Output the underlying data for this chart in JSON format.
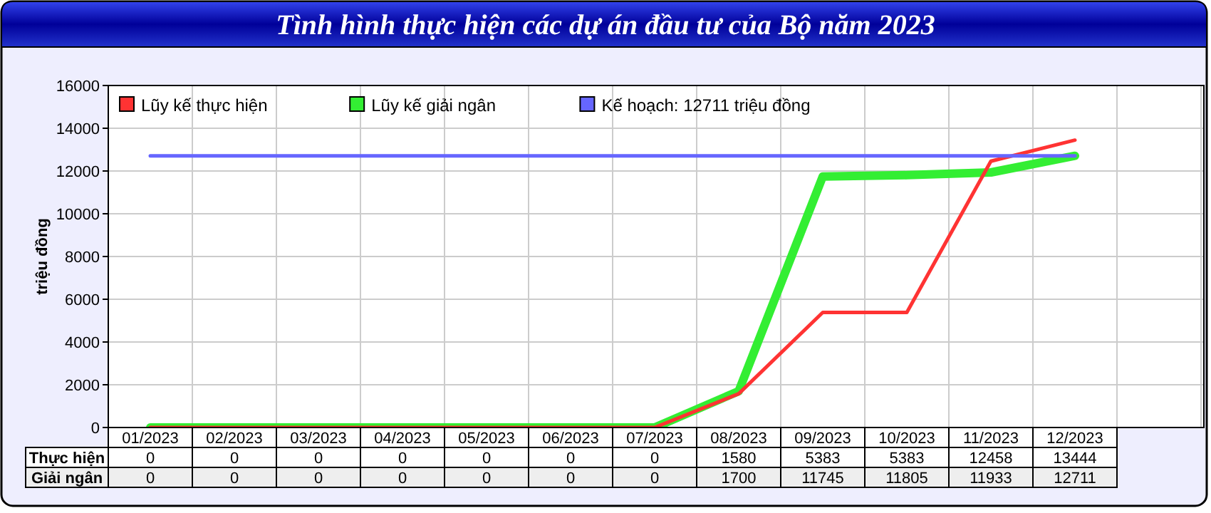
{
  "chart_data": {
    "type": "line",
    "title": "Tình hình thực hiện các dự án đầu tư của Bộ năm 2023",
    "ylabel": "triệu đồng",
    "categories": [
      "01/2023",
      "02/2023",
      "03/2023",
      "04/2023",
      "05/2023",
      "06/2023",
      "07/2023",
      "08/2023",
      "09/2023",
      "10/2023",
      "11/2023",
      "12/2023"
    ],
    "series": [
      {
        "name": "Lũy kế thực hiện",
        "color": "#ff3333",
        "values": [
          0,
          0,
          0,
          0,
          0,
          0,
          0,
          1580,
          5383,
          5383,
          12458,
          13444
        ],
        "value_labels": [
          "0",
          "0",
          "0",
          "0",
          "0",
          "0",
          "0",
          "1580",
          "5383",
          "5383",
          "12458",
          "13444"
        ]
      },
      {
        "name": "Lũy kế giải ngân",
        "color": "#33ee33",
        "values": [
          0,
          0,
          0,
          0,
          0,
          0,
          0,
          1700,
          11745,
          11805,
          11933,
          12711
        ],
        "value_labels": [
          "0",
          "0",
          "0",
          "0",
          "0",
          "0",
          "0",
          "1700",
          "11745",
          "11805",
          "11933",
          "12711"
        ]
      },
      {
        "name": "Kế hoạch: 12711 triệu đồng",
        "color": "#6666ff",
        "values": [
          12711,
          12711,
          12711,
          12711,
          12711,
          12711,
          12711,
          12711,
          12711,
          12711,
          12711,
          12711
        ]
      }
    ],
    "ylim": [
      0,
      16000
    ],
    "yticks": [
      0,
      2000,
      4000,
      6000,
      8000,
      10000,
      12000,
      14000,
      16000
    ],
    "grid": true,
    "legend": "top left",
    "line_style": "solid",
    "annotations": [
      "Thực hiện",
      "Giải ngân"
    ]
  }
}
